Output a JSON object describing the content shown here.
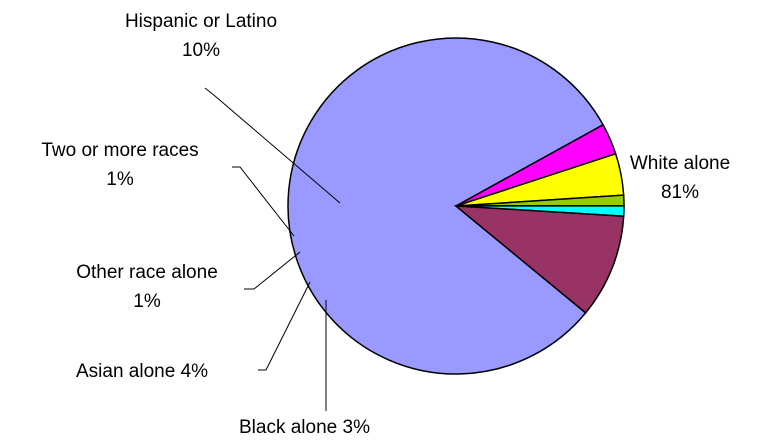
{
  "chart_data": {
    "type": "pie",
    "title": "",
    "series": [
      {
        "values": [
          81,
          3,
          4,
          1,
          1,
          10
        ],
        "categories": [
          "White alone",
          "Black alone",
          "Asian alone",
          "Other race alone",
          "Two or more races",
          "Hispanic or Latino"
        ]
      }
    ],
    "slices": [
      {
        "label": "White alone",
        "value": 81,
        "value_label": "81%",
        "color": "#9999ff"
      },
      {
        "label": "Black alone",
        "value": 3,
        "value_label": "3%",
        "color": "#ff00ff"
      },
      {
        "label": "Asian alone",
        "value": 4,
        "value_label": "4%",
        "color": "#ffff00"
      },
      {
        "label": "Other race alone",
        "value": 1,
        "value_label": "1%",
        "color": "#99cc00"
      },
      {
        "label": "Two or more races",
        "value": 1,
        "value_label": "1%",
        "color": "#00ffff"
      },
      {
        "label": "Hispanic or Latino",
        "value": 10,
        "value_label": "10%",
        "color": "#993366"
      }
    ],
    "legend": "none",
    "data_labels": "outside with leader lines"
  }
}
